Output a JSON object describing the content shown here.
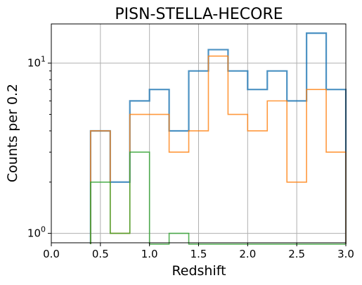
{
  "chart_data": {
    "type": "histogram-step",
    "title": "PISN-STELLA-HECORE",
    "xlabel": "Redshift",
    "ylabel": "Counts per 0.2",
    "xlim": [
      0.0,
      3.0
    ],
    "ylim": [
      0.88,
      17
    ],
    "yscale": "log",
    "grid": true,
    "bin_edges": [
      0.4,
      0.6,
      0.8,
      1.0,
      1.2,
      1.4,
      1.6,
      1.8,
      2.0,
      2.2,
      2.4,
      2.6,
      2.8,
      3.0
    ],
    "series": [
      {
        "color": "#1f77b4",
        "values": [
          4,
          2,
          6,
          7,
          4,
          9,
          12,
          9,
          7,
          9,
          6,
          15,
          7
        ]
      },
      {
        "color": "#ff7f0e",
        "values": [
          4,
          1,
          5,
          5,
          3,
          4,
          11,
          5,
          4,
          6,
          2,
          7,
          3
        ]
      },
      {
        "color": "#2ca02c",
        "values": [
          2,
          1,
          3,
          0,
          1,
          0,
          0,
          0,
          0,
          0,
          0,
          0,
          0
        ]
      }
    ],
    "xticks": [
      {
        "value": 0.0,
        "label": "0.0"
      },
      {
        "value": 0.5,
        "label": "0.5"
      },
      {
        "value": 1.0,
        "label": "1.0"
      },
      {
        "value": 1.5,
        "label": "1.5"
      },
      {
        "value": 2.0,
        "label": "2.0"
      },
      {
        "value": 2.5,
        "label": "2.5"
      },
      {
        "value": 3.0,
        "label": "3.0"
      }
    ],
    "yticks_major": [
      {
        "value": 1,
        "base": "10",
        "exp": "0"
      },
      {
        "value": 10,
        "base": "10",
        "exp": "1"
      }
    ],
    "yticks_minor": [
      2,
      3,
      4,
      5,
      6,
      7,
      8,
      9
    ]
  }
}
